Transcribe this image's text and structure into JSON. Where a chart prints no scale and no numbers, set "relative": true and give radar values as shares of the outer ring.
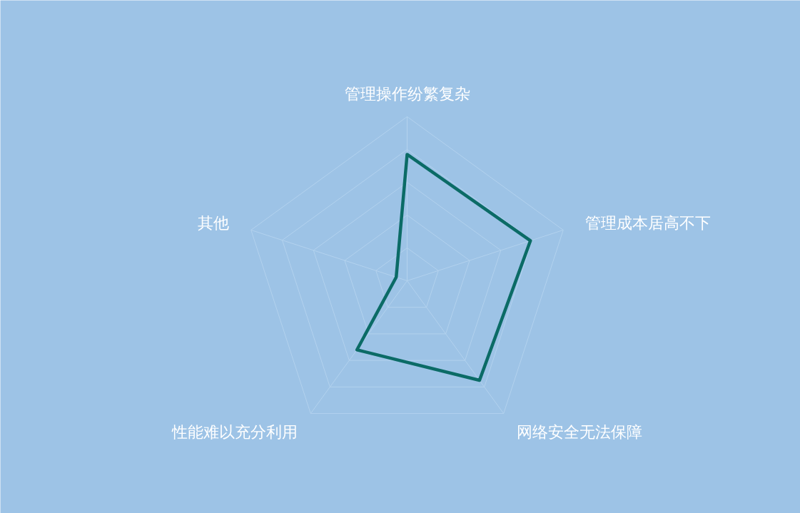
{
  "chart_data": {
    "type": "radar",
    "relative": true,
    "grid": true,
    "marker": "none",
    "categories": [
      "管理操作纷繁复杂",
      "管理成本居高不下",
      "网络安全无法保障",
      "性能难以充分利用",
      "其他"
    ],
    "series": [
      {
        "color": "#0b6b66",
        "values": [
          0.77,
          0.79,
          0.75,
          0.52,
          0.07
        ]
      }
    ]
  }
}
